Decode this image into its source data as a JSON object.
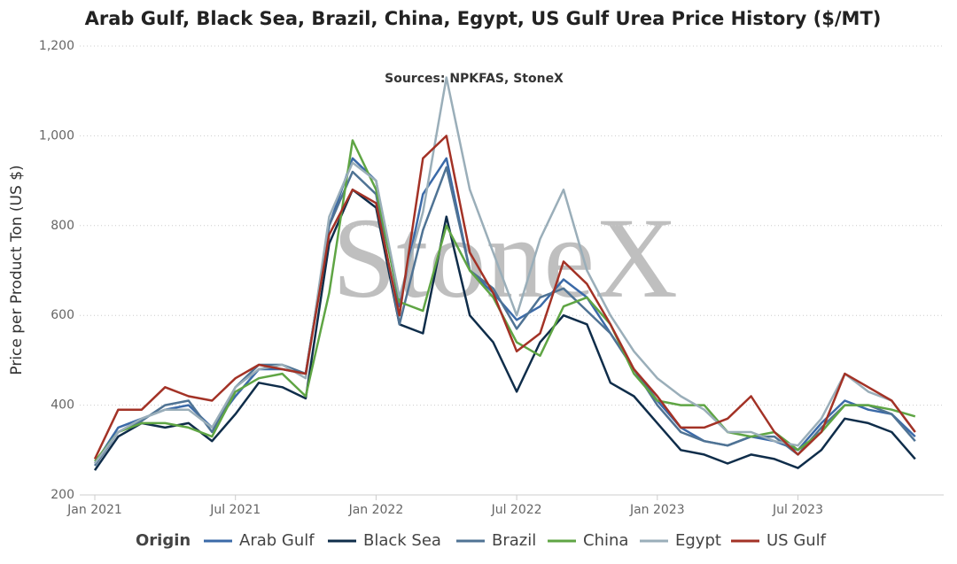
{
  "chart_data": {
    "type": "line",
    "title": "Arab Gulf, Black Sea, Brazil, China, Egypt, US Gulf Urea Price History ($/MT)",
    "subtitle": "Sources: NPKFAS, StoneX",
    "watermark": "StoneX",
    "y_label": "Price per Product Ton (US $)",
    "legend_title": "Origin",
    "legend": "bottom",
    "grid": true,
    "x": [
      "2021-01",
      "2021-02",
      "2021-03",
      "2021-04",
      "2021-05",
      "2021-06",
      "2021-07",
      "2021-08",
      "2021-09",
      "2021-10",
      "2021-11",
      "2021-12",
      "2022-01",
      "2022-02",
      "2022-03",
      "2022-04",
      "2022-05",
      "2022-06",
      "2022-07",
      "2022-08",
      "2022-09",
      "2022-10",
      "2022-11",
      "2022-12",
      "2023-01",
      "2023-02",
      "2023-03",
      "2023-04",
      "2023-05",
      "2023-06",
      "2023-07",
      "2023-08",
      "2023-09",
      "2023-10",
      "2023-11",
      "2023-12"
    ],
    "xticks": [
      {
        "value": "2021-01",
        "label": "Jan 2021"
      },
      {
        "value": "2021-07",
        "label": "Jul 2021"
      },
      {
        "value": "2022-01",
        "label": "Jan 2022"
      },
      {
        "value": "2022-07",
        "label": "Jul 2022"
      },
      {
        "value": "2023-01",
        "label": "Jan 2023"
      },
      {
        "value": "2023-07",
        "label": "Jul 2023"
      }
    ],
    "ylim": [
      200,
      1200
    ],
    "yticks": [
      200,
      400,
      600,
      800,
      {
        "value": 1000,
        "label": "1,000"
      },
      {
        "value": 1200,
        "label": "1,200"
      }
    ],
    "series": [
      {
        "name": "Arab Gulf",
        "color": "#3b6aa8",
        "values": [
          270,
          350,
          370,
          390,
          400,
          350,
          420,
          480,
          480,
          470,
          800,
          950,
          900,
          620,
          870,
          950,
          700,
          650,
          590,
          620,
          680,
          640,
          560,
          480,
          410,
          350,
          320,
          310,
          330,
          320,
          300,
          360,
          410,
          390,
          380,
          330
        ]
      },
      {
        "name": "Black Sea",
        "color": "#0f2d4a",
        "values": [
          255,
          330,
          360,
          350,
          360,
          320,
          380,
          450,
          440,
          415,
          760,
          880,
          840,
          580,
          560,
          820,
          600,
          540,
          430,
          540,
          600,
          580,
          450,
          420,
          360,
          300,
          290,
          270,
          290,
          280,
          260,
          300,
          370,
          360,
          340,
          280
        ]
      },
      {
        "name": "Brazil",
        "color": "#4f7394",
        "values": [
          265,
          340,
          365,
          400,
          410,
          340,
          440,
          490,
          490,
          470,
          800,
          920,
          870,
          580,
          790,
          930,
          700,
          660,
          570,
          640,
          660,
          610,
          560,
          480,
          400,
          340,
          320,
          310,
          330,
          330,
          290,
          350,
          400,
          400,
          380,
          320
        ]
      },
      {
        "name": "China",
        "color": "#5fa544",
        "values": [
          275,
          340,
          360,
          360,
          350,
          330,
          430,
          460,
          470,
          420,
          650,
          990,
          880,
          630,
          610,
          800,
          700,
          640,
          540,
          510,
          620,
          640,
          580,
          470,
          410,
          400,
          400,
          340,
          330,
          340,
          300,
          340,
          400,
          400,
          390,
          375
        ]
      },
      {
        "name": "Egypt",
        "color": "#9aaeb9",
        "values": [
          270,
          340,
          370,
          390,
          390,
          350,
          440,
          480,
          490,
          460,
          820,
          940,
          900,
          640,
          830,
          1130,
          880,
          740,
          600,
          770,
          880,
          700,
          600,
          520,
          460,
          420,
          390,
          340,
          340,
          320,
          310,
          370,
          470,
          430,
          410,
          340
        ]
      },
      {
        "name": "US Gulf",
        "color": "#a33226",
        "values": [
          280,
          390,
          390,
          440,
          420,
          410,
          460,
          490,
          480,
          470,
          780,
          880,
          850,
          600,
          950,
          1000,
          740,
          650,
          520,
          560,
          720,
          670,
          580,
          480,
          420,
          350,
          350,
          370,
          420,
          340,
          290,
          340,
          470,
          440,
          410,
          340
        ]
      }
    ]
  }
}
